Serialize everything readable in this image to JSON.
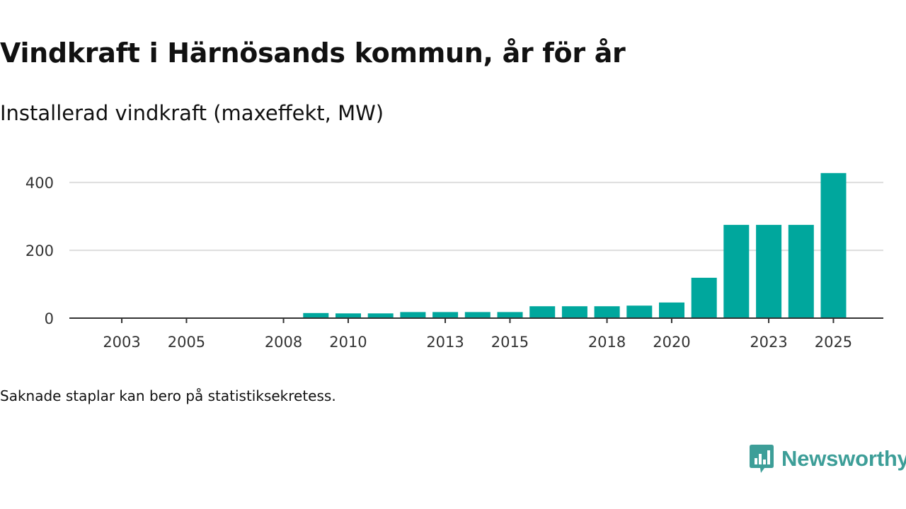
{
  "header": {
    "title": "Vindkraft i Härnösands kommun, år för år",
    "subtitle": "Installerad vindkraft (maxeffekt, MW)"
  },
  "footer": {
    "note": "Saknade staplar kan bero på statistiksekretess.",
    "brand_name": "Newsworthy"
  },
  "colors": {
    "bar": "#00a79d",
    "grid": "#dddddd",
    "axis": "#333333",
    "text": "#111111",
    "brand": "#3d9e98"
  },
  "chart_data": {
    "type": "bar",
    "title": "Vindkraft i Härnösands kommun, år för år",
    "subtitle": "Installerad vindkraft (maxeffekt, MW)",
    "xlabel": "",
    "ylabel": "",
    "categories": [
      2002,
      2003,
      2004,
      2005,
      2006,
      2007,
      2008,
      2009,
      2010,
      2011,
      2012,
      2013,
      2014,
      2015,
      2016,
      2017,
      2018,
      2019,
      2020,
      2021,
      2022,
      2023,
      2024,
      2025
    ],
    "values": [
      0,
      0,
      0,
      0,
      0,
      0,
      0,
      15,
      14,
      14,
      18,
      18,
      18,
      18,
      35,
      35,
      35,
      37,
      46,
      119,
      275,
      275,
      275,
      428
    ],
    "x_tick_labels": [
      "2003",
      "2005",
      "2008",
      "2010",
      "2013",
      "2015",
      "2018",
      "2020",
      "2023",
      "2025"
    ],
    "y_ticks": [
      0,
      200,
      400
    ],
    "ylim": [
      0,
      440
    ],
    "grid": true,
    "legend": "none"
  }
}
